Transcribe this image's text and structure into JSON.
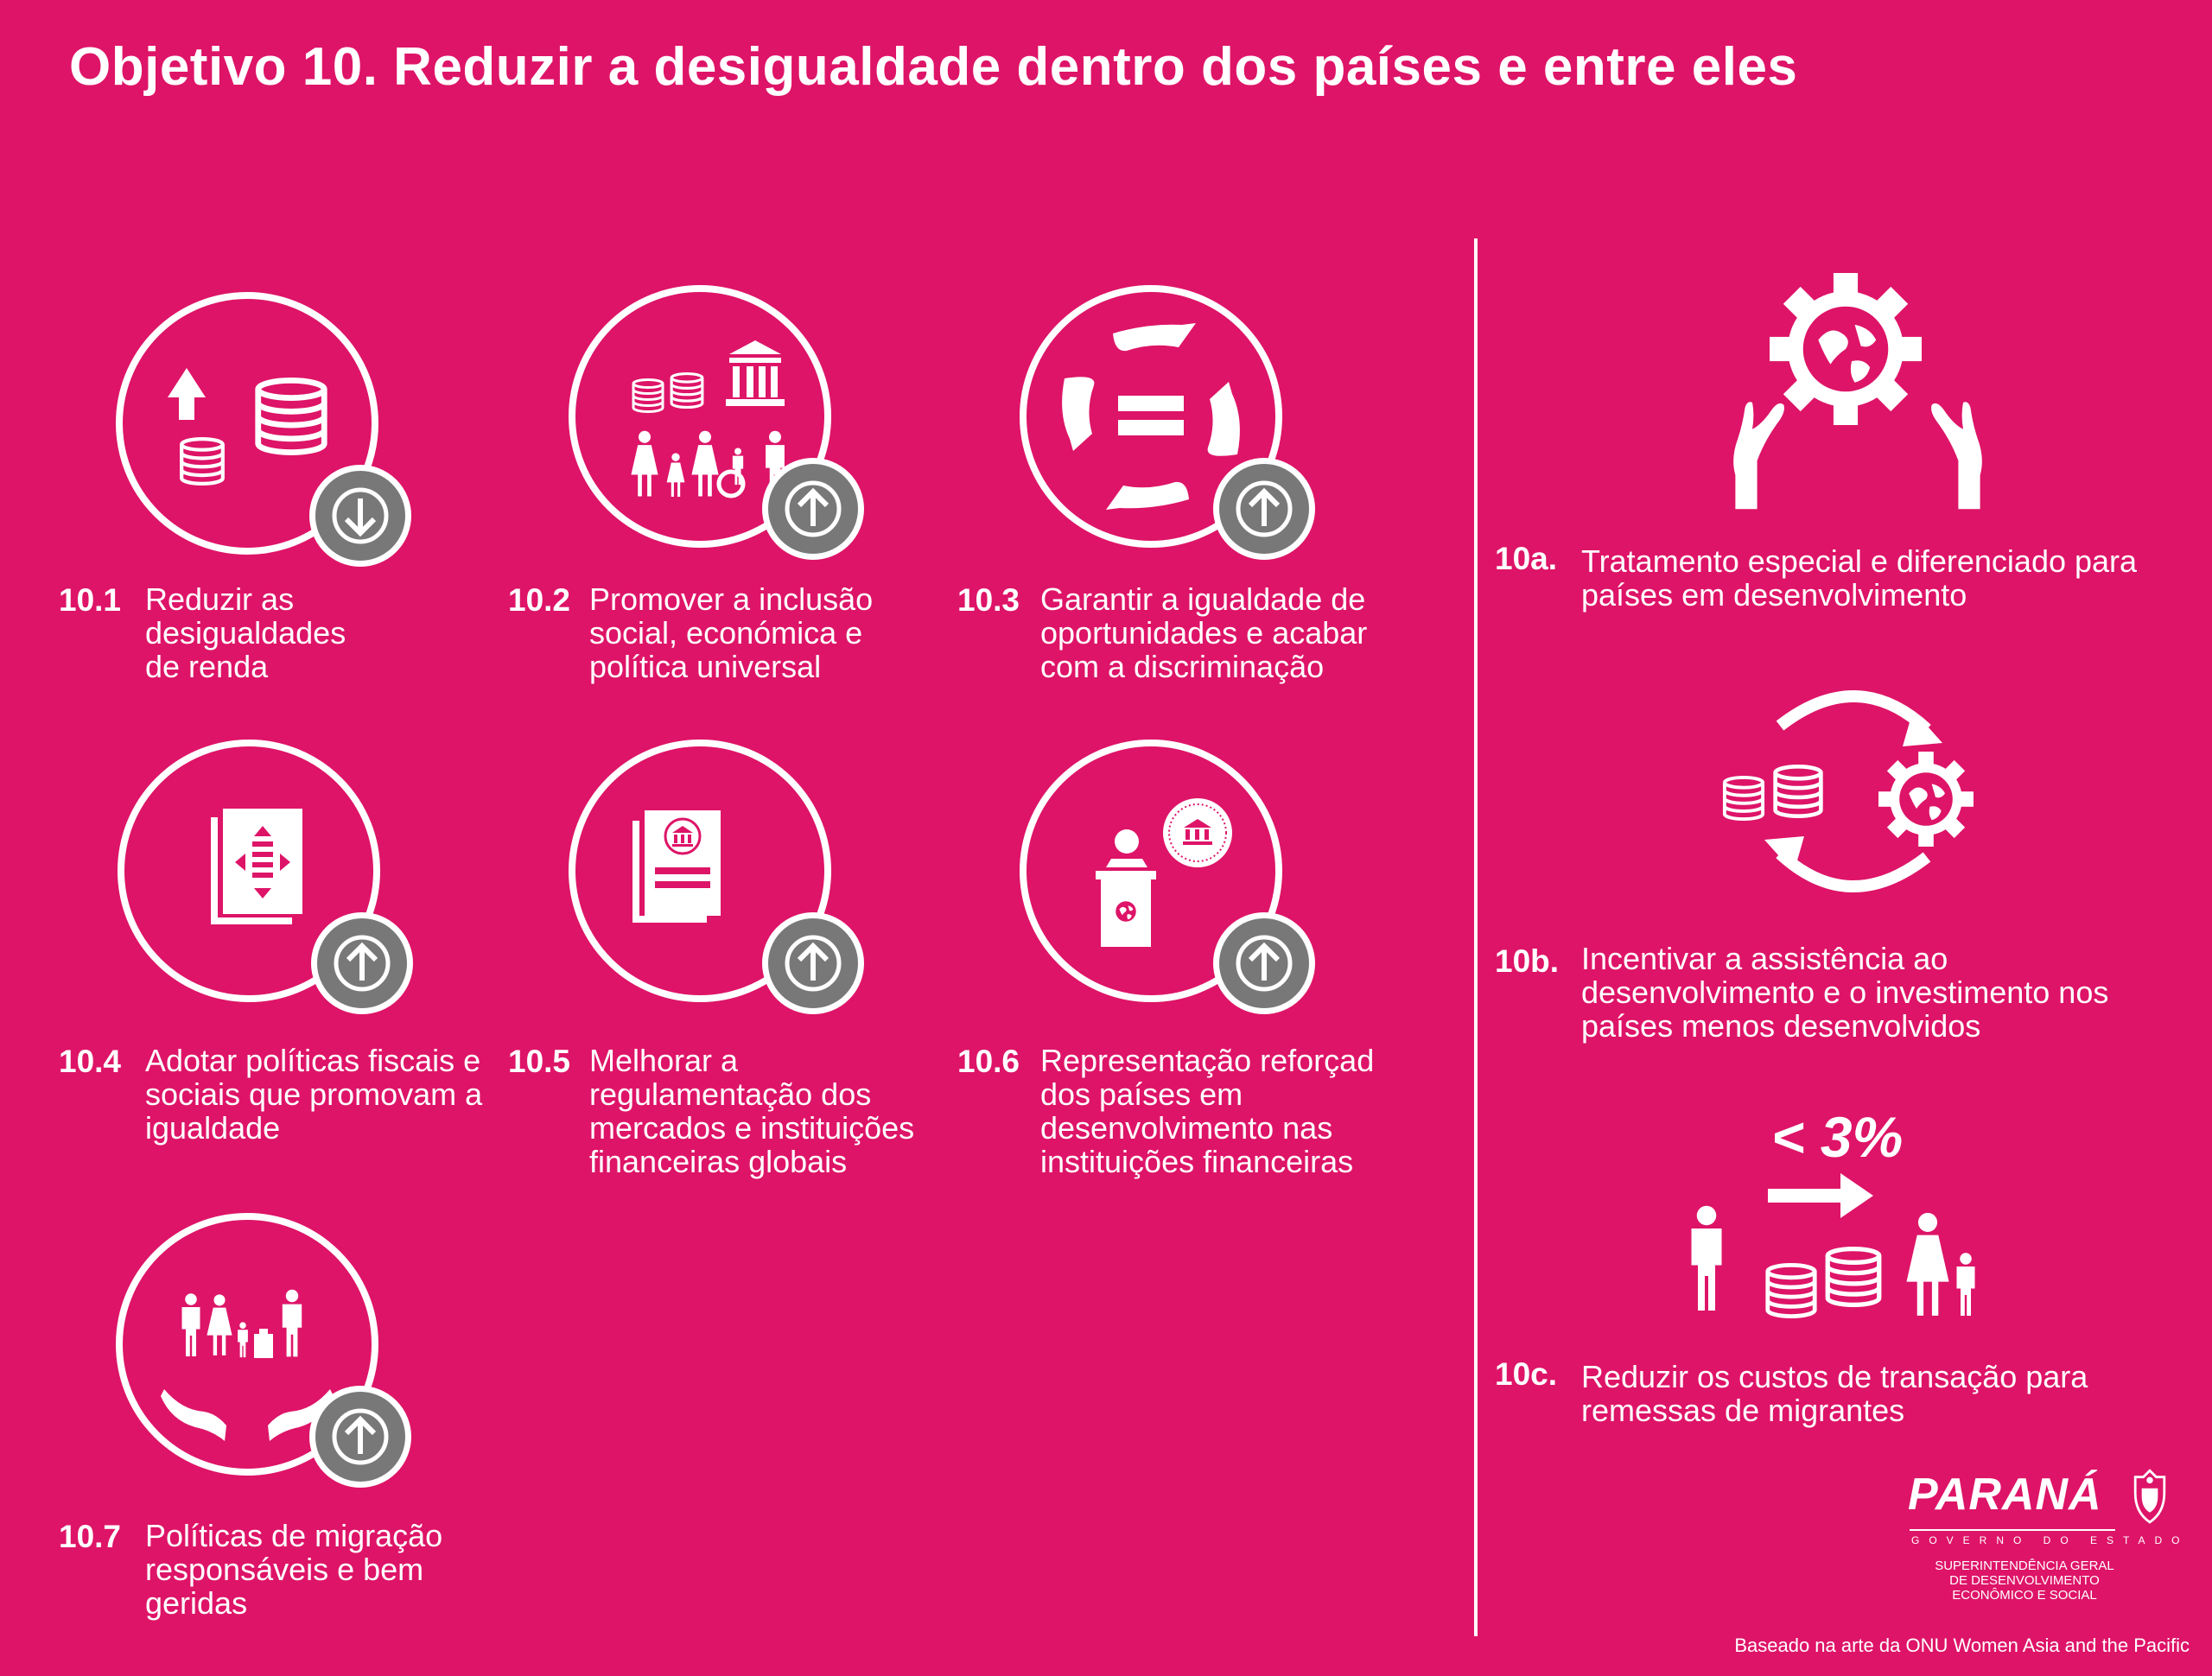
{
  "page": {
    "title": "Objetivo 10. Reduzir a desigualdade dentro dos países e entre eles"
  },
  "colors": {
    "background": "#de1468",
    "foreground": "#ffffff",
    "badge": "#787878"
  },
  "targets": [
    {
      "num": "10.1",
      "text": "Reduzir as desigualdades de renda",
      "icon": "coins-up-arrow-icon",
      "badge": "arrow-down-icon"
    },
    {
      "num": "10.2",
      "text": "Promover a inclusão social, económica e política universal",
      "icon": "coins-building-people-icon",
      "badge": "arrow-up-icon"
    },
    {
      "num": "10.3",
      "text": "Garantir a igualdade de oportunidades e acabar com a discriminação",
      "icon": "hands-equal-sign-icon",
      "badge": "arrow-up-icon"
    },
    {
      "num": "10.4",
      "text": "Adotar políticas fiscais e sociais que promovam a igualdade",
      "icon": "policy-document-icon",
      "badge": "arrow-up-icon"
    },
    {
      "num": "10.5",
      "text": "Melhorar a regulamentação dos mercados e instituições financeiras globais",
      "icon": "regulation-document-icon",
      "badge": "arrow-up-icon"
    },
    {
      "num": "10.6",
      "text": "Representação reforçad dos países em desenvolvimento nas instituições financeiras",
      "icon": "speaker-podium-icon",
      "badge": "arrow-up-icon"
    },
    {
      "num": "10.7",
      "text": "Políticas de migração responsáveis e bem geridas",
      "icon": "migrants-hands-icon",
      "badge": "arrow-up-icon"
    }
  ],
  "means": [
    {
      "num": "10a.",
      "text": "Tratamento especial e diferenciado para países em desenvolvimento",
      "icon": "hands-globe-gear-icon"
    },
    {
      "num": "10b.",
      "text": "Incentivar a assistência ao desenvolvimento e o investimento nos países menos desenvolvidos",
      "icon": "coins-cycle-globe-icon"
    },
    {
      "num": "10c.",
      "text": "Reduzir os custos de transação para remessas de migrantes",
      "icon": "remittance-icon",
      "label": "< 3%"
    }
  ],
  "logo": {
    "name": "PARANÁ",
    "subtitle": "GOVERNO DO ESTADO",
    "dept": "SUPERINTENDÊNCIA GERAL DE DESENVOLVIMENTO ECONÔMICO E SOCIAL"
  },
  "credit": "Baseado na arte da ONU Women Asia and the Pacific"
}
